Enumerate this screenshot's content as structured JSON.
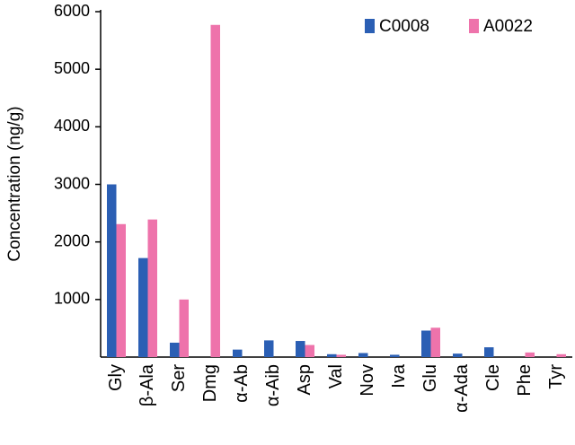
{
  "chart_data": {
    "type": "bar",
    "y_label": "Concentration (ng/g)",
    "categories": [
      "Gly",
      "β-Ala",
      "Ser",
      "Dmg",
      "α-Ab",
      "α-Aib",
      "Asp",
      "Val",
      "Nov",
      "Iva",
      "Glu",
      "α-Ada",
      "Cle",
      "Phe",
      "Tyr"
    ],
    "series": [
      {
        "name": "C0008",
        "color": "#2b5fb4",
        "values": [
          3000,
          1720,
          250,
          0,
          130,
          290,
          280,
          50,
          70,
          40,
          460,
          60,
          170,
          0,
          0
        ]
      },
      {
        "name": "A0022",
        "color": "#ee73ab",
        "values": [
          2310,
          2390,
          1000,
          5770,
          0,
          0,
          210,
          40,
          0,
          0,
          510,
          0,
          0,
          80,
          50
        ]
      }
    ],
    "ylim": [
      0,
      6000
    ],
    "yticks": [
      1000,
      2000,
      3000,
      4000,
      5000,
      6000
    ],
    "legend": "top-right"
  }
}
